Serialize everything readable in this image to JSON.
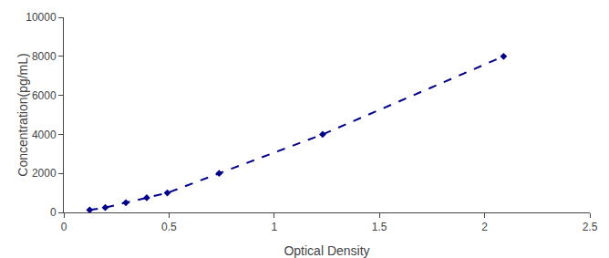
{
  "chart_data": {
    "type": "line",
    "x": [
      0.123,
      0.197,
      0.295,
      0.394,
      0.492,
      0.738,
      1.23,
      2.09
    ],
    "values": [
      125,
      250,
      500,
      750,
      1000,
      2000,
      4000,
      8000
    ],
    "color": "#00008B",
    "marker": "diamond",
    "line_style": "dashed",
    "xlabel": "Optical Density",
    "ylabel": "Concentration(pg/mL)",
    "xlim": [
      0,
      2.5
    ],
    "ylim": [
      0,
      10000
    ],
    "xticks": [
      0,
      0.5,
      1,
      1.5,
      2,
      2.5
    ],
    "yticks": [
      0,
      2000,
      4000,
      6000,
      8000,
      10000
    ],
    "grid": false
  }
}
